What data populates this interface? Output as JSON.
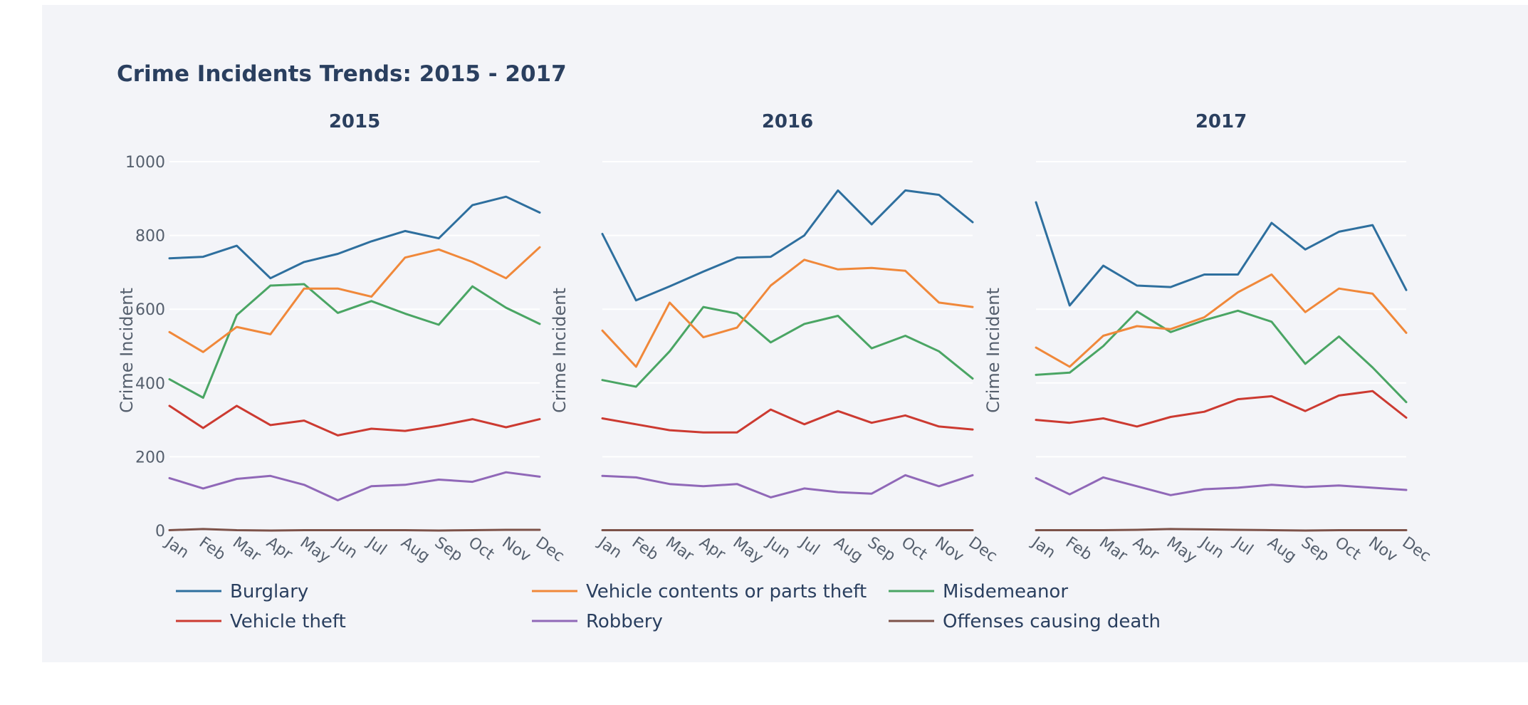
{
  "chart_data": {
    "type": "line",
    "title": "Crime Incidents Trends: 2015 - 2017",
    "ylabel": "Crime Incident",
    "ylim": [
      0,
      1000
    ],
    "yticks": [
      0,
      200,
      400,
      600,
      800,
      1000
    ],
    "grid": true,
    "legend_position": "bottom",
    "categories": [
      "Jan",
      "Feb",
      "Mar",
      "Apr",
      "May",
      "Jun",
      "Jul",
      "Aug",
      "Sep",
      "Oct",
      "Nov",
      "Dec"
    ],
    "legend": [
      {
        "name": "Burglary",
        "color": "#2e6f9e"
      },
      {
        "name": "Vehicle contents or parts theft",
        "color": "#f0883a"
      },
      {
        "name": "Misdemeanor",
        "color": "#4aa564"
      },
      {
        "name": "Vehicle theft",
        "color": "#cc3a31"
      },
      {
        "name": "Robbery",
        "color": "#9068b8"
      },
      {
        "name": "Offenses causing death",
        "color": "#7d5249"
      }
    ],
    "panels": [
      {
        "title": "2015",
        "series": [
          {
            "name": "Burglary",
            "values": [
              738,
              742,
              772,
              684,
              728,
              750,
              784,
              812,
              792,
              882,
              905,
              862
            ]
          },
          {
            "name": "Vehicle contents or parts theft",
            "values": [
              538,
              484,
              552,
              532,
              656,
              656,
              634,
              740,
              762,
              728,
              684,
              768
            ]
          },
          {
            "name": "Misdemeanor",
            "values": [
              410,
              360,
              584,
              664,
              668,
              590,
              622,
              588,
              558,
              662,
              604,
              560
            ]
          },
          {
            "name": "Vehicle theft",
            "values": [
              338,
              278,
              338,
              286,
              298,
              258,
              276,
              270,
              284,
              302,
              280,
              302
            ]
          },
          {
            "name": "Robbery",
            "values": [
              142,
              114,
              140,
              148,
              124,
              82,
              120,
              124,
              138,
              132,
              158,
              146
            ]
          },
          {
            "name": "Offenses causing death",
            "values": [
              1,
              4,
              1,
              0,
              1,
              1,
              1,
              1,
              0,
              1,
              2,
              2
            ]
          }
        ]
      },
      {
        "title": "2016",
        "series": [
          {
            "name": "Burglary",
            "values": [
              804,
              624,
              662,
              702,
              740,
              742,
              800,
              922,
              830,
              922,
              910,
              836
            ]
          },
          {
            "name": "Vehicle contents or parts theft",
            "values": [
              542,
              444,
              618,
              524,
              550,
              664,
              734,
              708,
              712,
              704,
              618,
              606
            ]
          },
          {
            "name": "Misdemeanor",
            "values": [
              408,
              390,
              486,
              606,
              588,
              510,
              560,
              582,
              494,
              528,
              486,
              412
            ]
          },
          {
            "name": "Vehicle theft",
            "values": [
              304,
              288,
              272,
              266,
              266,
              328,
              288,
              324,
              292,
              312,
              282,
              274
            ]
          },
          {
            "name": "Robbery",
            "values": [
              148,
              144,
              126,
              120,
              126,
              90,
              114,
              104,
              100,
              150,
              120,
              150
            ]
          },
          {
            "name": "Offenses causing death",
            "values": [
              1,
              1,
              1,
              1,
              1,
              1,
              1,
              1,
              1,
              1,
              1,
              1
            ]
          }
        ]
      },
      {
        "title": "2017",
        "series": [
          {
            "name": "Burglary",
            "values": [
              890,
              610,
              718,
              664,
              660,
              694,
              694,
              834,
              762,
              810,
              828,
              652
            ]
          },
          {
            "name": "Vehicle contents or parts theft",
            "values": [
              496,
              444,
              528,
              554,
              546,
              578,
              646,
              694,
              592,
              656,
              642,
              536
            ]
          },
          {
            "name": "Misdemeanor",
            "values": [
              422,
              428,
              500,
              594,
              538,
              570,
              596,
              566,
              452,
              526,
              442,
              348
            ]
          },
          {
            "name": "Vehicle theft",
            "values": [
              300,
              292,
              304,
              282,
              308,
              322,
              356,
              364,
              324,
              366,
              378,
              306
            ]
          },
          {
            "name": "Robbery",
            "values": [
              142,
              98,
              144,
              120,
              96,
              112,
              116,
              124,
              118,
              122,
              116,
              110
            ]
          },
          {
            "name": "Offenses causing death",
            "values": [
              1,
              1,
              1,
              2,
              4,
              3,
              2,
              1,
              0,
              1,
              1,
              1
            ]
          }
        ]
      }
    ]
  }
}
